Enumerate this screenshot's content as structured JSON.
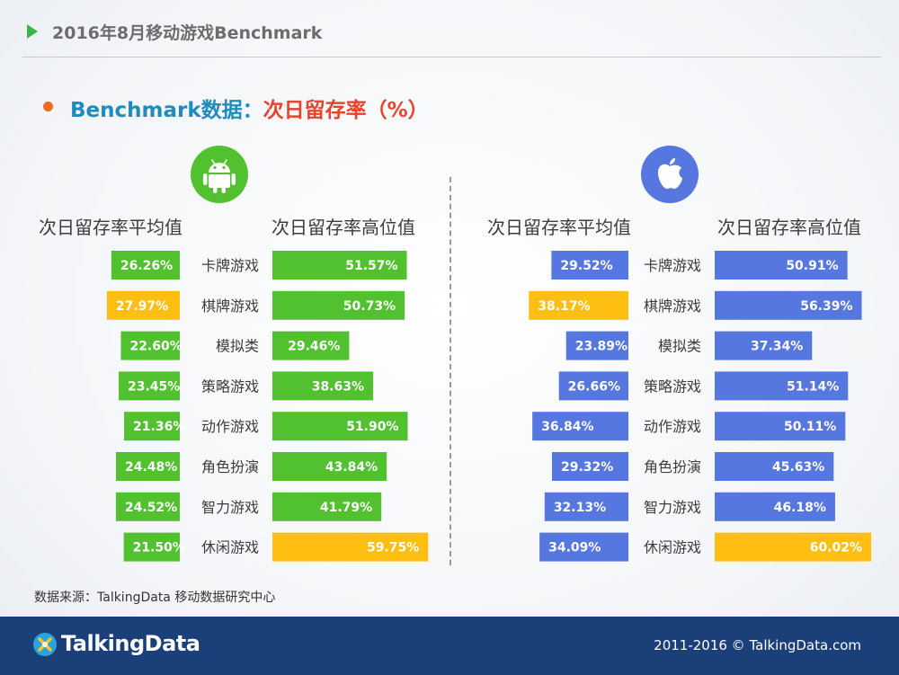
{
  "header": {
    "title": "2016年8月移动游戏Benchmark"
  },
  "subtitle": {
    "part1": "Benchmark数据：",
    "part2": "次日留存率（%）"
  },
  "colors": {
    "android_green": "#52c130",
    "ios_blue": "#5677e0",
    "highlight": "#ffbe12",
    "footer_bg": "#1b3f79"
  },
  "icons": {
    "android": "android-icon",
    "ios": "apple-icon"
  },
  "panels": {
    "android": {
      "avg_header": "次日留存率平均值",
      "high_header": "次日留存率高位值"
    },
    "ios": {
      "avg_header": "次日留存率平均值",
      "high_header": "次日留存率高位值"
    }
  },
  "chart_data": [
    {
      "type": "bar",
      "platform": "Android",
      "categories": [
        "卡牌游戏",
        "棋牌游戏",
        "模拟类",
        "策略游戏",
        "动作游戏",
        "角色扮演",
        "智力游戏",
        "休闲游戏"
      ],
      "series": [
        {
          "name": "次日留存率平均值",
          "values": [
            26.26,
            27.97,
            22.6,
            23.45,
            21.36,
            24.48,
            24.52,
            21.5
          ],
          "labels": [
            "26.26%",
            "27.97%",
            "22.60%",
            "23.45%",
            "21.36%",
            "24.48%",
            "24.52%",
            "21.50%"
          ],
          "highlight_index": 1
        },
        {
          "name": "次日留存率高位值",
          "values": [
            51.57,
            50.73,
            29.46,
            38.63,
            51.9,
            43.84,
            41.79,
            59.75
          ],
          "labels": [
            "51.57%",
            "50.73%",
            "29.46%",
            "38.63%",
            "51.90%",
            "43.84%",
            "41.79%",
            "59.75%"
          ],
          "highlight_index": 7
        }
      ]
    },
    {
      "type": "bar",
      "platform": "iOS",
      "categories": [
        "卡牌游戏",
        "棋牌游戏",
        "模拟类",
        "策略游戏",
        "动作游戏",
        "角色扮演",
        "智力游戏",
        "休闲游戏"
      ],
      "series": [
        {
          "name": "次日留存率平均值",
          "values": [
            29.52,
            38.17,
            23.89,
            26.66,
            36.84,
            29.32,
            32.13,
            34.09
          ],
          "labels": [
            "29.52%",
            "38.17%",
            "23.89%",
            "26.66%",
            "36.84%",
            "29.32%",
            "32.13%",
            "34.09%"
          ],
          "highlight_index": 1
        },
        {
          "name": "次日留存率高位值",
          "values": [
            50.91,
            56.39,
            37.34,
            51.14,
            50.11,
            45.63,
            46.18,
            60.02
          ],
          "labels": [
            "50.91%",
            "56.39%",
            "37.34%",
            "51.14%",
            "50.11%",
            "45.63%",
            "46.18%",
            "60.02%"
          ],
          "highlight_index": 7
        }
      ]
    }
  ],
  "source": "数据来源：TalkingData 移动数据研究中心",
  "footer": {
    "logo": "TalkingData",
    "copyright": "2011-2016 © TalkingData.com"
  }
}
